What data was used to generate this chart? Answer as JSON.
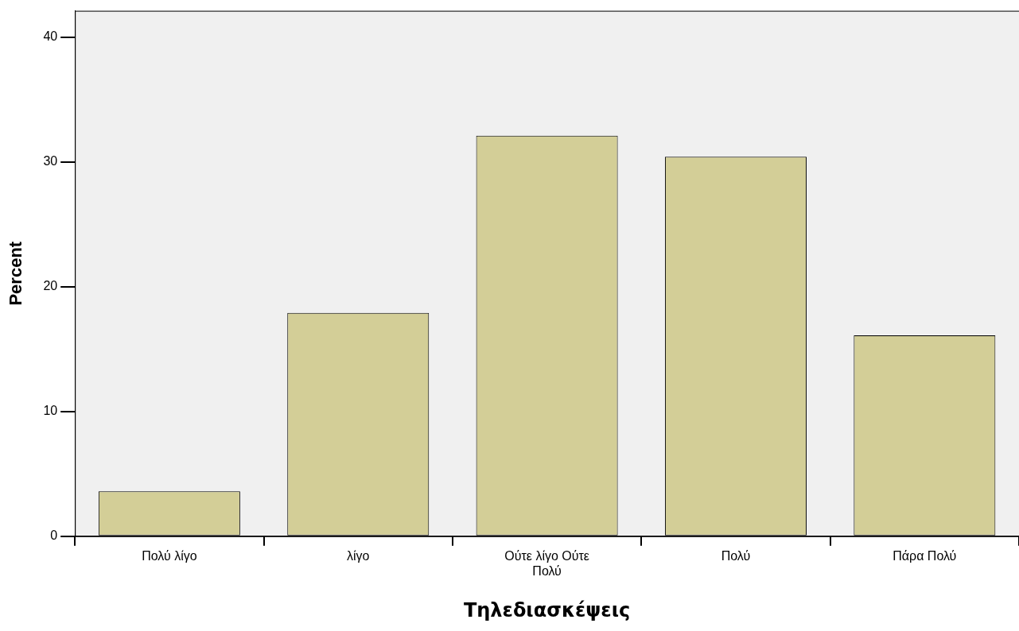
{
  "chart_data": {
    "type": "bar",
    "xlabel": "Τηλεδιασκέψεις",
    "ylabel": "Percent",
    "categories": [
      "Πολύ λίγο",
      "λίγο",
      "Ούτε λίγο Ούτε Πολύ",
      "Πολύ",
      "Πάρα Πολύ"
    ],
    "values": [
      3.6,
      17.9,
      32.1,
      30.4,
      16.1
    ],
    "color": "#d3ce97",
    "ylim": [
      0,
      42.1
    ],
    "yticks": [
      0,
      10,
      20,
      30,
      40
    ],
    "grid": false,
    "legend": false
  }
}
